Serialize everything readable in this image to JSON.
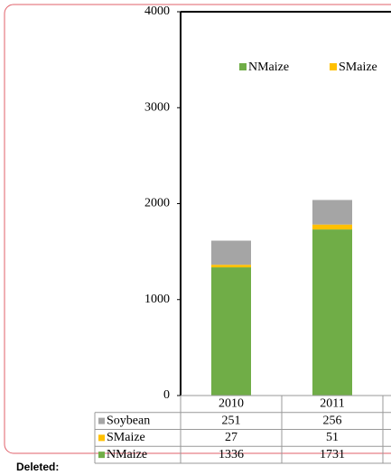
{
  "chart_data": {
    "type": "bar",
    "stacked": true,
    "categories": [
      "2010",
      "2011"
    ],
    "series": [
      {
        "name": "NMaize",
        "color": "#70ad47",
        "values": [
          1336,
          1731
        ]
      },
      {
        "name": "SMaize",
        "color": "#ffc000",
        "values": [
          27,
          51
        ]
      },
      {
        "name": "Soybean",
        "color": "#a5a5a5",
        "values": [
          251,
          256
        ]
      }
    ],
    "ylim": [
      0,
      4000
    ],
    "yticks": [
      0,
      1000,
      2000,
      3000,
      4000
    ],
    "legend": "top"
  },
  "margin_note": "Deleted:"
}
